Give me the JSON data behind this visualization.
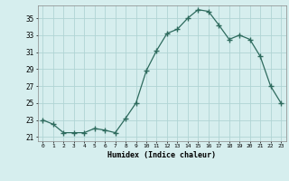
{
  "x": [
    0,
    1,
    2,
    3,
    4,
    5,
    6,
    7,
    8,
    9,
    10,
    11,
    12,
    13,
    14,
    15,
    16,
    17,
    18,
    19,
    20,
    21,
    22,
    23
  ],
  "y": [
    23.0,
    22.5,
    21.5,
    21.5,
    21.5,
    22.0,
    21.8,
    21.5,
    23.2,
    25.0,
    28.8,
    31.2,
    33.2,
    33.7,
    35.0,
    36.0,
    35.8,
    34.2,
    32.5,
    33.0,
    32.5,
    30.5,
    27.0,
    25.0
  ],
  "line_color": "#2e6b5e",
  "marker": "+",
  "marker_size": 4,
  "bg_color": "#d6eeee",
  "grid_color": "#b0d4d4",
  "xlabel": "Humidex (Indice chaleur)",
  "xlim": [
    -0.5,
    23.5
  ],
  "ylim": [
    20.5,
    36.5
  ],
  "yticks": [
    21,
    23,
    25,
    27,
    29,
    31,
    33,
    35
  ],
  "xticks": [
    0,
    1,
    2,
    3,
    4,
    5,
    6,
    7,
    8,
    9,
    10,
    11,
    12,
    13,
    14,
    15,
    16,
    17,
    18,
    19,
    20,
    21,
    22,
    23
  ]
}
